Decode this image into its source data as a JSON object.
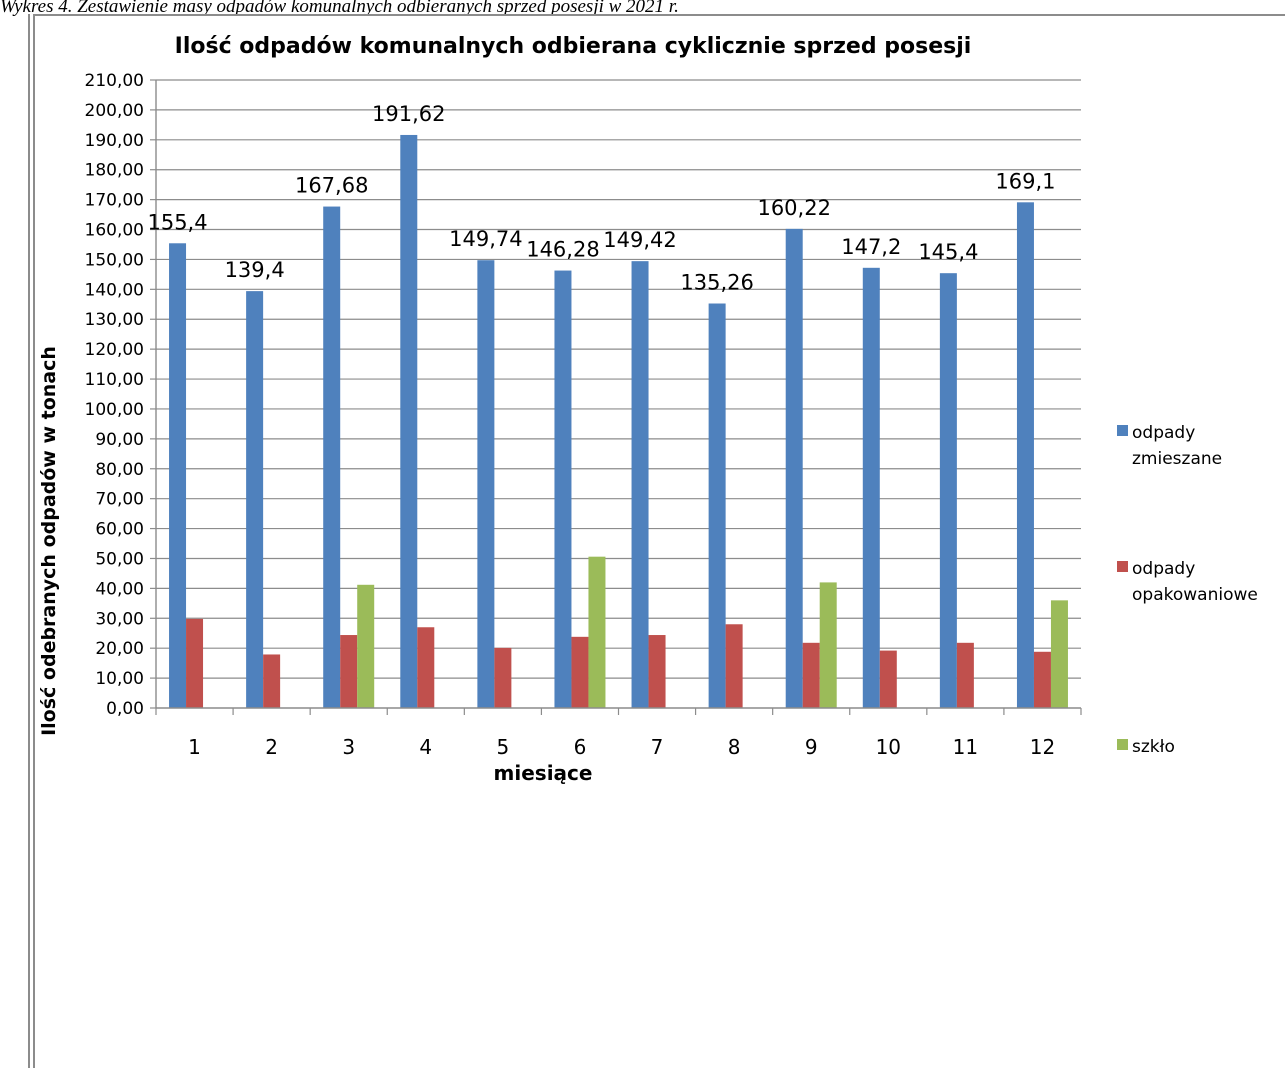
{
  "caption": "Wykres 4. Zestawienie masy odpadów komunalnych odbieranych sprzed posesji w 2021 r.",
  "chart_data": {
    "type": "bar",
    "title": "Ilość odpadów komunalnych odbierana cyklicznie sprzed posesji",
    "xlabel": "miesiące",
    "ylabel": "Ilość odebranych odpadów w tonach",
    "ylim": [
      0,
      210
    ],
    "ytick_step": 10,
    "ytick_labels": [
      "0,00",
      "10,00",
      "20,00",
      "30,00",
      "40,00",
      "50,00",
      "60,00",
      "70,00",
      "80,00",
      "90,00",
      "100,00",
      "110,00",
      "120,00",
      "130,00",
      "140,00",
      "150,00",
      "160,00",
      "170,00",
      "180,00",
      "190,00",
      "200,00",
      "210,00"
    ],
    "categories": [
      "1",
      "2",
      "3",
      "4",
      "5",
      "6",
      "7",
      "8",
      "9",
      "10",
      "11",
      "12"
    ],
    "grid": true,
    "legend_position": "right",
    "series": [
      {
        "name": "odpady zmieszane",
        "legend_lines": [
          "odpady",
          "zmieszane"
        ],
        "color": "#4f81bd",
        "values": [
          155.4,
          139.4,
          167.68,
          191.62,
          149.74,
          146.28,
          149.42,
          135.26,
          160.22,
          147.2,
          145.4,
          169.1
        ],
        "data_labels": [
          "155,4",
          "139,4",
          "167,68",
          "191,62",
          "149,74",
          "146,28",
          "149,42",
          "135,26",
          "160,22",
          "147,2",
          "145,4",
          "169,1"
        ]
      },
      {
        "name": "odpady opakowaniowe",
        "legend_lines": [
          "odpady",
          "opakowaniowe"
        ],
        "color": "#c0504d",
        "values": [
          29.8,
          17.9,
          24.4,
          27.0,
          20.1,
          23.8,
          24.4,
          28.0,
          21.8,
          19.2,
          21.8,
          18.8
        ]
      },
      {
        "name": "szkło",
        "legend_lines": [
          "szkło"
        ],
        "color": "#9bbb59",
        "values": [
          0,
          0,
          41.2,
          0,
          0,
          50.6,
          0,
          0,
          42.0,
          0,
          0,
          36.0
        ]
      }
    ]
  }
}
